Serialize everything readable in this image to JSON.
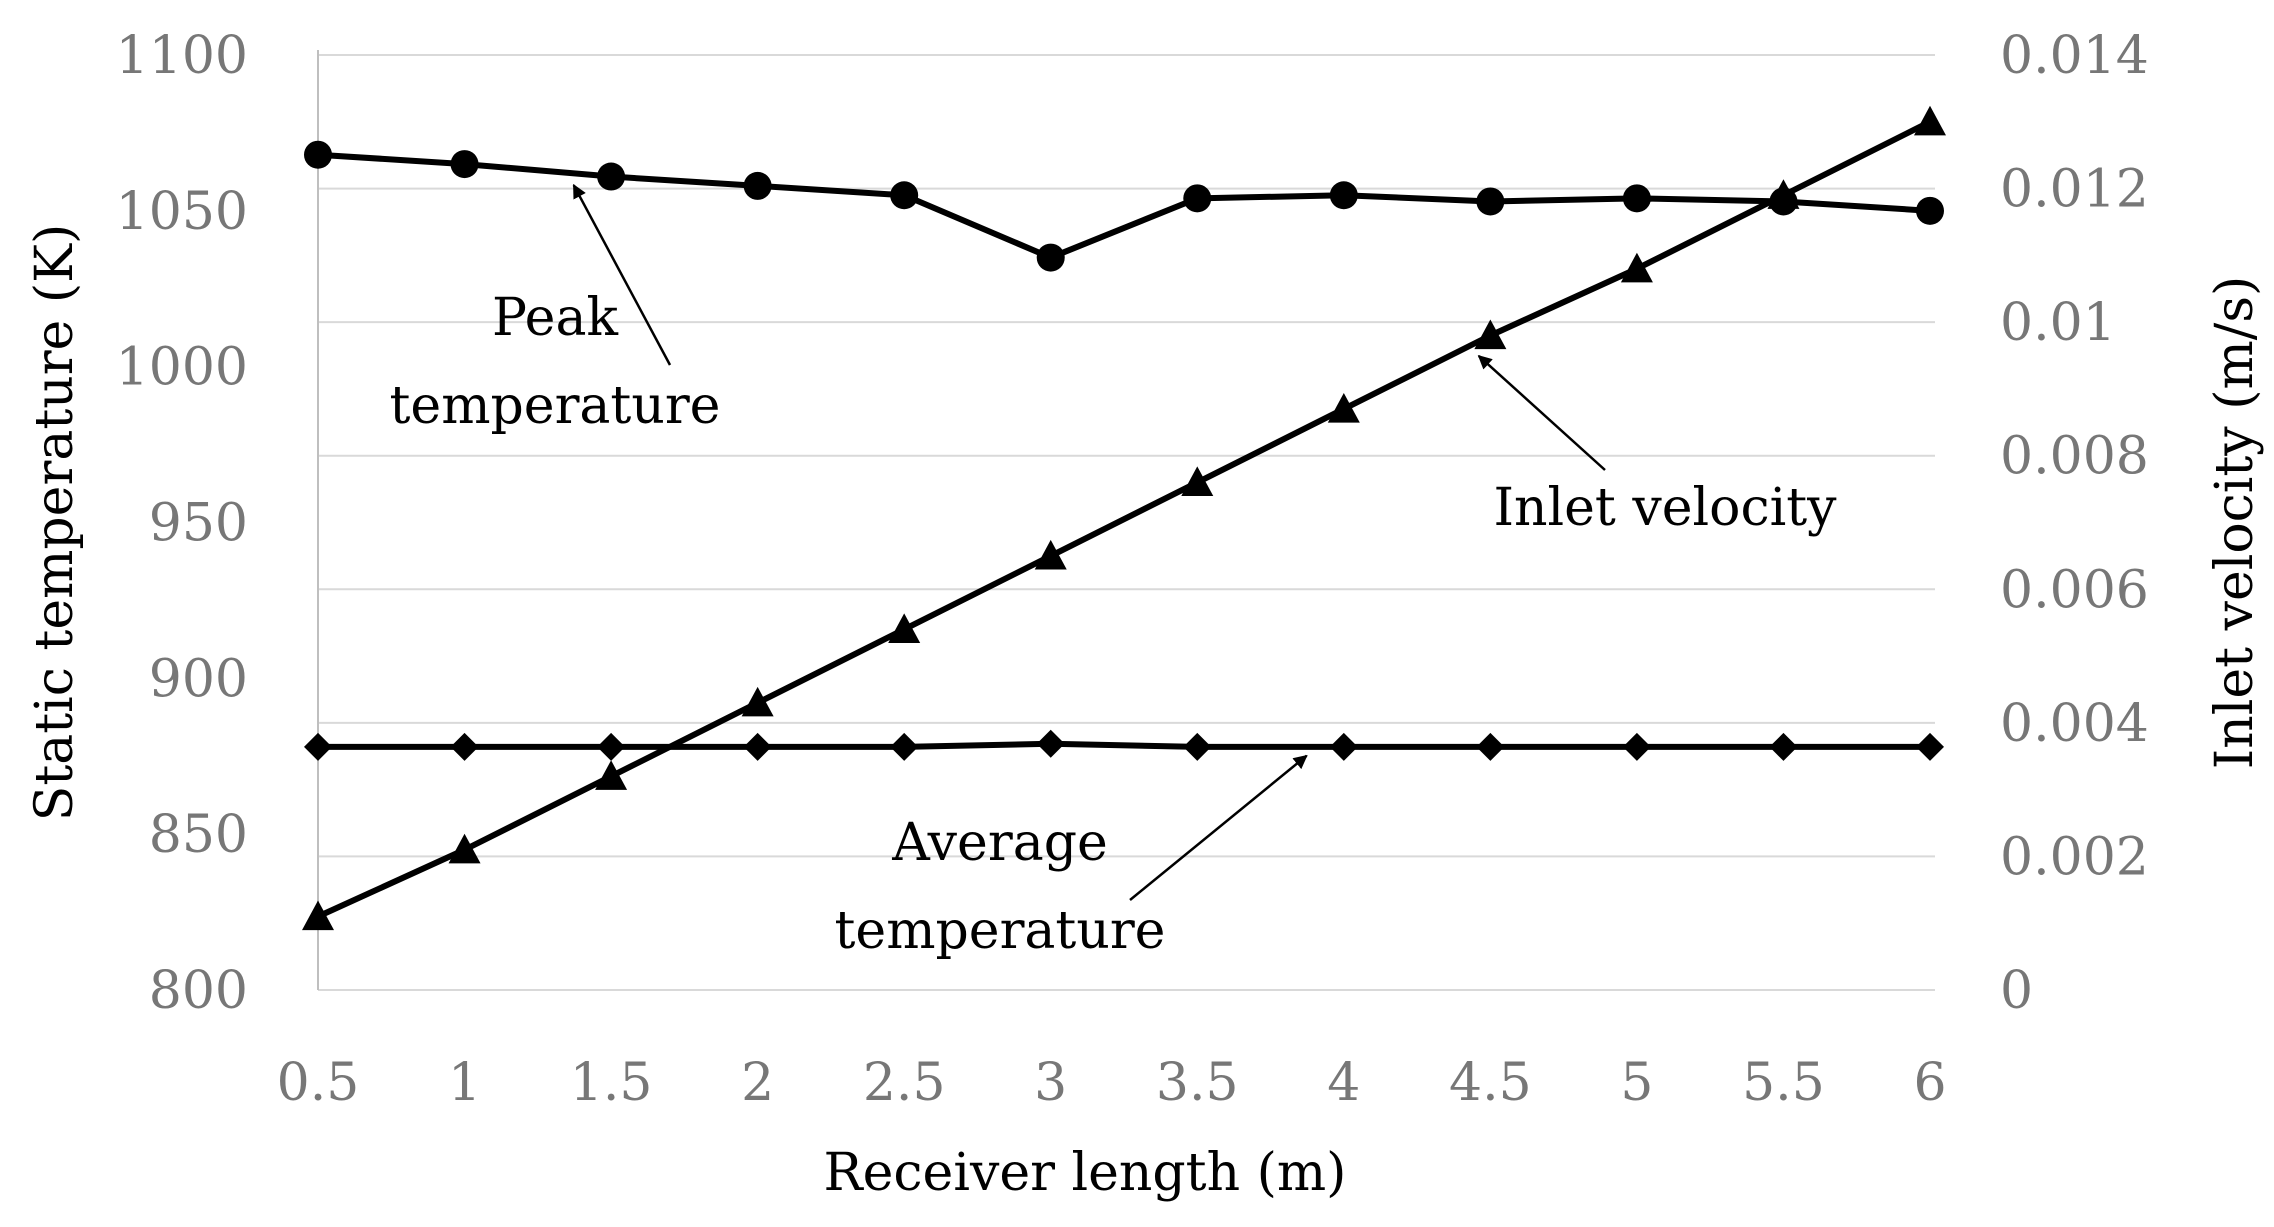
{
  "chart_data": {
    "type": "line",
    "x": [
      0.5,
      1,
      1.5,
      2,
      2.5,
      3,
      3.5,
      4,
      4.5,
      5,
      5.5,
      6
    ],
    "x_tick_labels": [
      "0.5",
      "1",
      "1.5",
      "2",
      "2.5",
      "3",
      "3.5",
      "4",
      "4.5",
      "5",
      "5.5",
      "6"
    ],
    "xlabel": "Receiver length (m)",
    "ylabel": "Static temperature (K)",
    "y2label": "Inlet velocity (m/s)",
    "ylim": [
      800,
      1100
    ],
    "y_ticks": [
      800,
      850,
      900,
      950,
      1000,
      1050,
      1100
    ],
    "y_tick_labels": [
      "800",
      "850",
      "900",
      "950",
      "1000",
      "1050",
      "1100"
    ],
    "y2lim": [
      0,
      0.014
    ],
    "y2_ticks": [
      0,
      0.002,
      0.004,
      0.006,
      0.008,
      0.01,
      0.012,
      0.014
    ],
    "y2_tick_labels": [
      "0",
      "0.002",
      "0.004",
      "0.006",
      "0.008",
      "0.01",
      "0.012",
      "0.014"
    ],
    "grid": true,
    "series": [
      {
        "name": "Peak temperature",
        "axis": "left",
        "marker": "circle",
        "values": [
          1068,
          1065,
          1061,
          1058,
          1055,
          1035,
          1054,
          1055,
          1053,
          1054,
          1053,
          1050
        ]
      },
      {
        "name": "Average temperature",
        "axis": "left",
        "marker": "diamond",
        "values": [
          878,
          878,
          878,
          878,
          878,
          879,
          878,
          878,
          878,
          878,
          878,
          878
        ]
      },
      {
        "name": "Inlet velocity",
        "axis": "right",
        "marker": "triangle",
        "values": [
          0.0011,
          0.0021,
          0.0032,
          0.0043,
          0.0054,
          0.0065,
          0.0076,
          0.0087,
          0.0098,
          0.0108,
          0.0119,
          0.013
        ]
      }
    ],
    "annotations": [
      {
        "label_lines": [
          "Peak",
          "temperature"
        ],
        "target_series": "Peak temperature"
      },
      {
        "label_lines": [
          "Inlet velocity"
        ],
        "target_series": "Inlet velocity"
      },
      {
        "label_lines": [
          "Average",
          "temperature"
        ],
        "target_series": "Average temperature"
      }
    ]
  }
}
